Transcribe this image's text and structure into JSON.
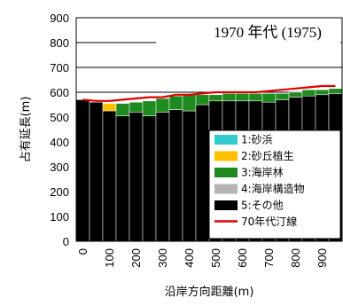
{
  "chart_data": {
    "type": "bar",
    "stacked": true,
    "title": "1970 年代 (1975)",
    "xlabel": "沿岸方向距離(m)",
    "ylabel": "占有延長(m)",
    "ylim": [
      0,
      900
    ],
    "yticks": [
      0,
      100,
      200,
      300,
      400,
      500,
      600,
      700,
      800,
      900
    ],
    "xticks": [
      0,
      100,
      200,
      300,
      400,
      500,
      600,
      700,
      800,
      900
    ],
    "x": [
      0,
      50,
      100,
      150,
      200,
      250,
      300,
      350,
      400,
      450,
      500,
      550,
      600,
      650,
      700,
      750,
      800,
      850,
      900,
      950
    ],
    "series": [
      {
        "name": "5:その他",
        "color": "#000000",
        "values": [
          570,
          560,
          525,
          505,
          520,
          505,
          520,
          530,
          525,
          550,
          565,
          565,
          565,
          565,
          560,
          570,
          580,
          585,
          590,
          595
        ]
      },
      {
        "name": "4:海岸構造物",
        "color": "#b4b4b4",
        "values": [
          0,
          0,
          0,
          0,
          0,
          0,
          0,
          0,
          0,
          0,
          0,
          0,
          0,
          0,
          0,
          0,
          0,
          0,
          0,
          0
        ]
      },
      {
        "name": "3:海岸林",
        "color": "#1f8a1f",
        "values": [
          0,
          0,
          0,
          50,
          40,
          60,
          55,
          55,
          65,
          40,
          25,
          30,
          30,
          30,
          35,
          25,
          20,
          25,
          20,
          20
        ]
      },
      {
        "name": "2:砂丘植生",
        "color": "#ffc000",
        "values": [
          0,
          0,
          30,
          0,
          0,
          0,
          0,
          0,
          0,
          0,
          0,
          0,
          0,
          0,
          0,
          0,
          0,
          0,
          0,
          0
        ]
      },
      {
        "name": "1:砂浜",
        "color": "#33cccc",
        "values": [
          0,
          0,
          0,
          0,
          0,
          0,
          0,
          0,
          0,
          0,
          0,
          0,
          0,
          0,
          0,
          0,
          0,
          0,
          0,
          0
        ]
      }
    ],
    "line": {
      "name": "70年代汀線",
      "color": "#e00000",
      "values": [
        570,
        565,
        565,
        570,
        575,
        580,
        580,
        590,
        590,
        595,
        600,
        600,
        600,
        600,
        605,
        610,
        615,
        620,
        625,
        625
      ]
    },
    "legend": [
      "1:砂浜",
      "2:砂丘植生",
      "3:海岸林",
      "4:海岸構造物",
      "5:その他",
      "70年代汀線"
    ],
    "legend_colors": [
      "#33cccc",
      "#ffc000",
      "#1f8a1f",
      "#b4b4b4",
      "#000000",
      "#e00000"
    ],
    "legend_position": "bottom-right",
    "grid": true
  }
}
